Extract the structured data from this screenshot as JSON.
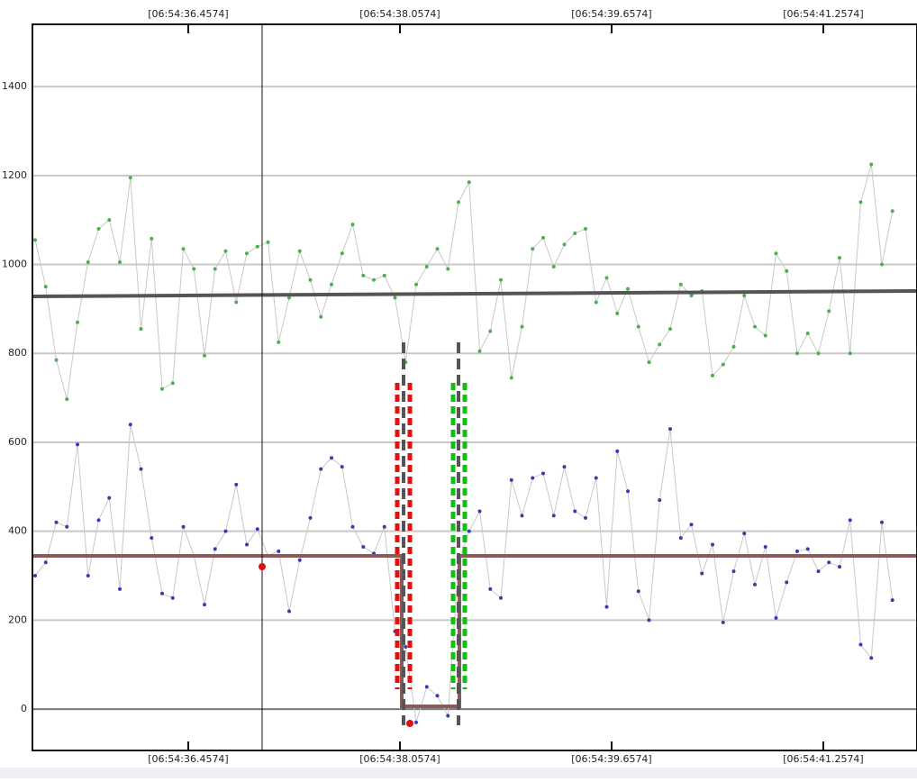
{
  "chart_data": {
    "type": "line",
    "x": [
      35.3,
      35.38,
      35.46,
      35.54,
      35.62,
      35.7,
      35.78,
      35.86,
      35.94,
      36.02,
      36.1,
      36.18,
      36.26,
      36.34,
      36.42,
      36.5,
      36.58,
      36.66,
      36.74,
      36.82,
      36.9,
      36.98,
      37.06,
      37.14,
      37.22,
      37.3,
      37.38,
      37.46,
      37.54,
      37.62,
      37.7,
      37.78,
      37.86,
      37.94,
      38.02,
      38.1,
      38.18,
      38.26,
      38.34,
      38.42,
      38.5,
      38.58,
      38.66,
      38.74,
      38.82,
      38.9,
      38.98,
      39.06,
      39.14,
      39.22,
      39.3,
      39.38,
      39.46,
      39.54,
      39.62,
      39.7,
      39.78,
      39.86,
      39.94,
      40.02,
      40.1,
      40.18,
      40.26,
      40.34,
      40.42,
      40.5,
      40.58,
      40.66,
      40.74,
      40.82,
      40.9,
      40.98,
      41.06,
      41.14,
      41.22,
      41.3,
      41.38,
      41.46,
      41.54,
      41.62,
      41.7,
      41.78
    ],
    "series": [
      {
        "color": "#4caf50",
        "line_color": "#c8c8c8",
        "values": [
          1055,
          950,
          785,
          697,
          870,
          1005,
          1080,
          1100,
          1005,
          1195,
          855,
          1058,
          720,
          733,
          1035,
          990,
          795,
          990,
          1030,
          915,
          1025,
          1040,
          1050,
          825,
          925,
          1030,
          965,
          882,
          955,
          1025,
          1090,
          975,
          965,
          975,
          925,
          780,
          955,
          995,
          1035,
          990,
          1140,
          1185,
          805,
          850,
          965,
          745,
          860,
          1035,
          1060,
          995,
          1045,
          1070,
          1080,
          915,
          970,
          890,
          945,
          860,
          780,
          820,
          855,
          955,
          930,
          940,
          750,
          775,
          815,
          930,
          860,
          840,
          1025,
          985,
          800,
          845,
          800,
          895,
          1015,
          800,
          1140,
          1225,
          1000,
          1120
        ]
      },
      {
        "color": "#3b3bb0",
        "line_color": "#c8c8c8",
        "values": [
          300,
          330,
          420,
          410,
          595,
          300,
          425,
          475,
          270,
          640,
          540,
          385,
          260,
          250,
          410,
          345,
          235,
          360,
          400,
          505,
          370,
          405,
          345,
          355,
          220,
          335,
          430,
          540,
          565,
          545,
          410,
          365,
          350,
          410,
          175,
          140,
          -30,
          50,
          30,
          -15,
          330,
          400,
          445,
          270,
          250,
          515,
          435,
          520,
          530,
          435,
          545,
          445,
          430,
          520,
          230,
          580,
          490,
          265,
          200,
          470,
          630,
          385,
          415,
          305,
          370,
          195,
          310,
          395,
          280,
          365,
          205,
          285,
          355,
          360,
          310,
          330,
          320,
          425,
          145,
          115,
          420,
          245
        ]
      }
    ],
    "xlim": [
      35.2795,
      41.9655
    ],
    "xticks": [
      {
        "value": 36.4574,
        "label": "[06:54:36.4574]"
      },
      {
        "value": 38.0574,
        "label": "[06:54:38.0574]"
      },
      {
        "value": 39.6574,
        "label": "[06:54:39.6574]"
      },
      {
        "value": 41.2574,
        "label": "[06:54:41.2574]"
      }
    ],
    "ylim": [
      -93,
      1540
    ],
    "yticks": [
      0,
      200,
      400,
      600,
      800,
      1000,
      1200,
      1400
    ],
    "grid": true
  }
}
